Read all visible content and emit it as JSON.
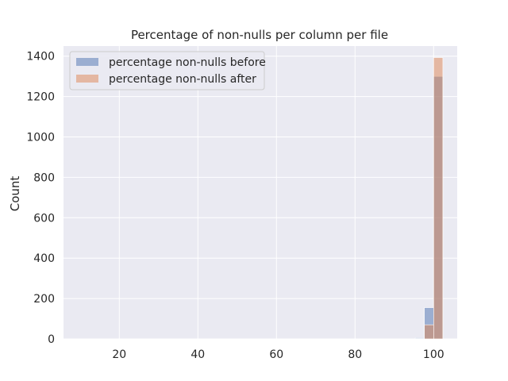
{
  "chart_data": {
    "type": "bar",
    "title": "Percentage of non-nulls per column per file",
    "xlabel": "",
    "ylabel": "Count",
    "xlim": [
      5.8,
      106
    ],
    "ylim": [
      0,
      1450
    ],
    "xticks": [
      20,
      40,
      60,
      80,
      100
    ],
    "yticks": [
      0,
      200,
      400,
      600,
      800,
      1000,
      1200,
      1400
    ],
    "grid": true,
    "legend_position": "top-left",
    "bin_width": 2.35,
    "series": [
      {
        "name": "percentage non-nulls before",
        "color": "#4c72b0",
        "bins": [
          {
            "x0": 95.3,
            "x1": 97.65,
            "count": 6
          },
          {
            "x0": 97.65,
            "x1": 100.0,
            "count": 155
          },
          {
            "x0": 100.0,
            "x1": 102.35,
            "count": 1300
          }
        ]
      },
      {
        "name": "percentage non-nulls after",
        "color": "#dd8452",
        "bins": [
          {
            "x0": 95.3,
            "x1": 97.65,
            "count": 2
          },
          {
            "x0": 97.65,
            "x1": 100.0,
            "count": 70
          },
          {
            "x0": 100.0,
            "x1": 102.35,
            "count": 1393
          }
        ]
      }
    ]
  }
}
